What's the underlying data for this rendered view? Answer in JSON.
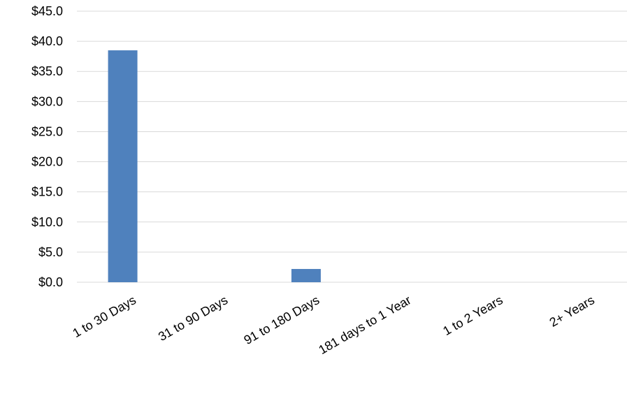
{
  "chart_data": {
    "type": "bar",
    "categories": [
      "1 to 30 Days",
      "31 to 90 Days",
      "91 to 180 Days",
      "181 days to 1 Year",
      "1 to 2 Years",
      "2+ Years"
    ],
    "values": [
      38.5,
      0,
      2.2,
      0,
      0,
      0
    ],
    "ylim": [
      0,
      45
    ],
    "yticks": [
      0,
      5,
      10,
      15,
      20,
      25,
      30,
      35,
      40,
      45
    ],
    "ytick_labels": [
      "$0.0",
      "$5.0",
      "$10.0",
      "$15.0",
      "$20.0",
      "$25.0",
      "$30.0",
      "$35.0",
      "$40.0",
      "$45.0"
    ],
    "xtick_rotation_deg": -30,
    "grid": true,
    "legend": "none",
    "title": "",
    "xlabel": "",
    "ylabel": "",
    "colors": {
      "bar": "#4f81bd",
      "grid": "#d9d9d9",
      "text": "#000000"
    }
  }
}
